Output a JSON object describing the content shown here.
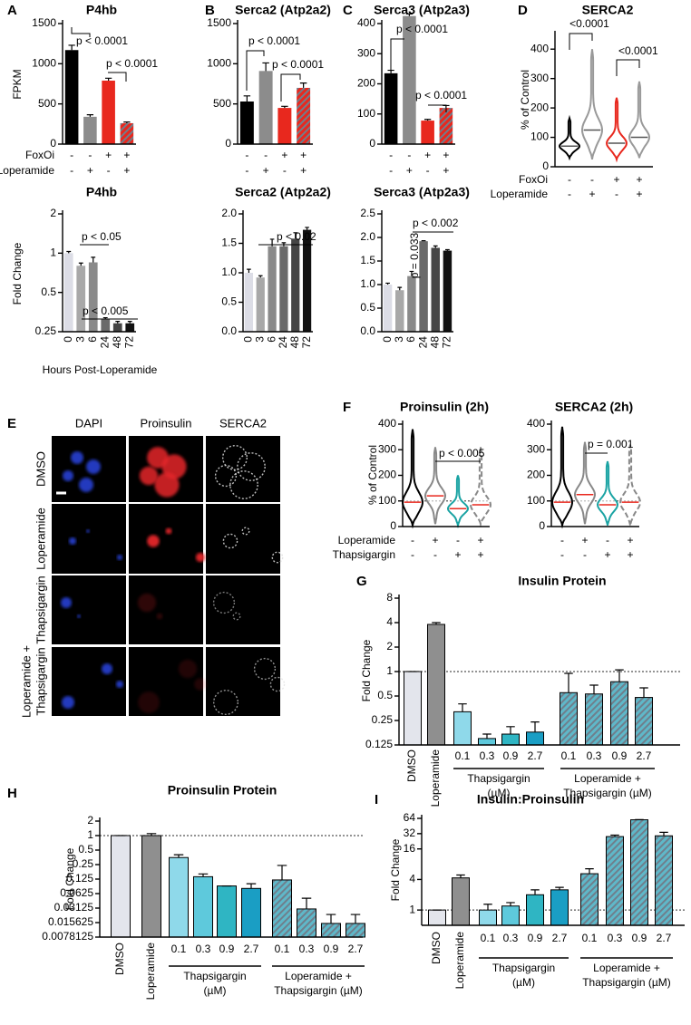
{
  "panels": [
    "A",
    "B",
    "C",
    "D",
    "E",
    "F",
    "G",
    "H",
    "I"
  ],
  "microscopy": {
    "columns": [
      "DAPI",
      "Proinsulin",
      "SERCA2"
    ],
    "rows": [
      [
        "DMSO"
      ],
      [
        "Loperamide"
      ],
      [
        "Thapsigargin"
      ],
      [
        "Loperamide +",
        "Thapsigargin"
      ]
    ]
  },
  "chart_data": [
    {
      "type": "bar",
      "title": "P4hb",
      "ylabel": "FPKM",
      "values": [
        1170,
        340,
        790,
        260
      ],
      "errors": [
        60,
        25,
        30,
        15
      ],
      "colors": [
        "#000000",
        "#8c8c8c",
        "#e8281e",
        "#e8281e"
      ],
      "hatch": [
        false,
        false,
        false,
        true
      ],
      "ylim": [
        0,
        1500
      ],
      "yticks": [
        0,
        500,
        1000,
        1500
      ],
      "factors": [
        {
          "name": "FoxOi",
          "levels": [
            "-",
            "-",
            "+",
            "+"
          ]
        },
        {
          "name": "Loperamide",
          "levels": [
            "-",
            "+",
            "-",
            "+"
          ]
        }
      ],
      "annotations": [
        "p < 0.0001",
        "p < 0.0001"
      ]
    },
    {
      "type": "bar",
      "title": "Serca2 (Atp2a2)",
      "values": [
        530,
        910,
        450,
        700
      ],
      "errors": [
        70,
        100,
        20,
        60
      ],
      "colors": [
        "#000000",
        "#8c8c8c",
        "#e8281e",
        "#e8281e"
      ],
      "hatch": [
        false,
        false,
        false,
        true
      ],
      "ylim": [
        0,
        1500
      ],
      "yticks": [
        0,
        500,
        1000,
        1500
      ],
      "factors": [
        {
          "levels": [
            "-",
            "-",
            "+",
            "+"
          ]
        },
        {
          "levels": [
            "-",
            "+",
            "-",
            "+"
          ]
        }
      ],
      "annotations": [
        "p < 0.0001",
        "p < 0.0001"
      ]
    },
    {
      "type": "bar",
      "title": "Serca3 (Atp2a3)",
      "values": [
        235,
        425,
        78,
        120
      ],
      "errors": [
        10,
        7,
        4,
        8
      ],
      "colors": [
        "#000000",
        "#8c8c8c",
        "#e8281e",
        "#e8281e"
      ],
      "hatch": [
        false,
        false,
        false,
        true
      ],
      "ylim": [
        0,
        400
      ],
      "yticks": [
        0,
        100,
        200,
        300,
        400
      ],
      "factors": [
        {
          "levels": [
            "-",
            "-",
            "+",
            "+"
          ]
        },
        {
          "levels": [
            "-",
            "+",
            "-",
            "+"
          ]
        }
      ],
      "annotations": [
        "p < 0.0001",
        "p < 0.0001"
      ]
    },
    {
      "type": "violin",
      "title": "SERCA2",
      "ylabel": "% of Control",
      "medians": [
        70,
        125,
        80,
        100
      ],
      "mins": [
        30,
        25,
        25,
        30
      ],
      "maxs": [
        165,
        400,
        235,
        290
      ],
      "colors": [
        "#000000",
        "#999999",
        "#e8281e",
        "#999999"
      ],
      "median_color": "#555555",
      "ylim": [
        0,
        450
      ],
      "yticks": [
        0,
        100,
        200,
        300,
        400
      ],
      "factors": [
        {
          "name": "FoxOi",
          "levels": [
            "-",
            "-",
            "+",
            "+"
          ]
        },
        {
          "name": "Loperamide",
          "levels": [
            "-",
            "+",
            "-",
            "+"
          ]
        }
      ],
      "annotations": [
        "<0.0001",
        "<0.0001"
      ]
    },
    {
      "type": "bar",
      "title": "P4hb",
      "ylabel": "Fold Change",
      "xlabel": "Hours Post-Loperamide",
      "yscale": "log2",
      "categories": [
        "0",
        "3",
        "6",
        "24",
        "48",
        "72"
      ],
      "values": [
        1.0,
        0.8,
        0.85,
        0.31,
        0.29,
        0.29
      ],
      "errors": [
        0.03,
        0.04,
        0.08,
        0.01,
        0.01,
        0.01
      ],
      "colors": [
        "#dcdde6",
        "#a8a8a8",
        "#8a8a8a",
        "#6a6a6a",
        "#454545",
        "#111111"
      ],
      "ylim": [
        0.25,
        2
      ],
      "yticks": [
        0.25,
        0.5,
        1,
        2
      ],
      "annotations": [
        "p < 0.05",
        "p < 0.005"
      ]
    },
    {
      "type": "bar",
      "title": "Serca2 (Atp2a2)",
      "categories": [
        "0",
        "3",
        "6",
        "24",
        "48",
        "72"
      ],
      "values": [
        1.0,
        0.92,
        1.45,
        1.45,
        1.58,
        1.73
      ],
      "errors": [
        0.06,
        0.03,
        0.12,
        0.06,
        0.1,
        0.04
      ],
      "colors": [
        "#dcdde6",
        "#a8a8a8",
        "#8a8a8a",
        "#6a6a6a",
        "#454545",
        "#111111"
      ],
      "ylim": [
        0,
        2
      ],
      "yticks": [
        {
          "value": 0,
          "label": "0.0"
        },
        {
          "value": 0.5,
          "label": "0.5"
        },
        {
          "value": 1,
          "label": "1.0"
        },
        {
          "value": 1.5,
          "label": "1.5"
        },
        {
          "value": 2,
          "label": "2.0"
        }
      ],
      "annotations": [
        "p < 0.02"
      ]
    },
    {
      "type": "bar",
      "title": "Serca3 (Atp2a3)",
      "categories": [
        "0",
        "3",
        "6",
        "24",
        "48",
        "72"
      ],
      "values": [
        1.0,
        0.88,
        1.18,
        1.92,
        1.78,
        1.72
      ],
      "errors": [
        0.03,
        0.06,
        0.1,
        0.01,
        0.04,
        0.02
      ],
      "colors": [
        "#dcdde6",
        "#a8a8a8",
        "#8a8a8a",
        "#6a6a6a",
        "#454545",
        "#111111"
      ],
      "ylim": [
        0,
        2.5
      ],
      "yticks": [
        {
          "value": 0,
          "label": "0.0"
        },
        {
          "value": 0.5,
          "label": "0.5"
        },
        {
          "value": 1,
          "label": "1.0"
        },
        {
          "value": 1.5,
          "label": "1.5"
        },
        {
          "value": 2,
          "label": "2.0"
        },
        {
          "value": 2.5,
          "label": "2.5"
        }
      ],
      "annotations": [
        "p = 0.033",
        "p < 0.002"
      ]
    },
    {
      "type": "violin",
      "title": "Proinsulin (2h)",
      "ylabel": "% of Control",
      "medians": [
        95,
        120,
        70,
        85
      ],
      "mins": [
        5,
        10,
        5,
        10
      ],
      "maxs": [
        380,
        310,
        200,
        310
      ],
      "colors": [
        "#000000",
        "#888888",
        "#1aa3a3",
        "#888888"
      ],
      "dashed": [
        false,
        false,
        false,
        true
      ],
      "median_color": "#e8281e",
      "ylim": [
        0,
        400
      ],
      "yticks": [
        0,
        100,
        200,
        300,
        400
      ],
      "reference_line": 100,
      "factors": [
        {
          "name": "Loperamide",
          "levels": [
            "-",
            "+",
            "-",
            "+"
          ]
        },
        {
          "name": "Thapsigargin",
          "levels": [
            "-",
            "-",
            "+",
            "+"
          ]
        }
      ],
      "annotations": [
        "p < 0.005"
      ]
    },
    {
      "type": "violin",
      "title": "SERCA2 (2h)",
      "medians": [
        95,
        125,
        85,
        95
      ],
      "mins": [
        5,
        10,
        5,
        5
      ],
      "maxs": [
        390,
        330,
        255,
        320
      ],
      "colors": [
        "#000000",
        "#888888",
        "#1aa3a3",
        "#888888"
      ],
      "dashed": [
        false,
        false,
        false,
        true
      ],
      "median_color": "#e8281e",
      "ylim": [
        0,
        400
      ],
      "yticks": [
        0,
        100,
        200,
        300,
        400
      ],
      "reference_line": 100,
      "factors": [
        {
          "levels": [
            "-",
            "+",
            "-",
            "+"
          ]
        },
        {
          "levels": [
            "-",
            "-",
            "+",
            "+"
          ]
        }
      ],
      "annotations": [
        "p = 0.001"
      ]
    },
    {
      "type": "bar",
      "title": "Insulin Protein",
      "ylabel": "Fold Change",
      "yscale": "log2",
      "categories": [
        "DMSO",
        "Loperamide",
        "0.1",
        "0.3",
        "0.9",
        "2.7",
        "0.1",
        "0.3",
        "0.9",
        "2.7"
      ],
      "values": [
        1,
        3.8,
        0.32,
        0.15,
        0.17,
        0.18,
        0.55,
        0.53,
        0.75,
        0.48
      ],
      "errors": [
        0,
        0.2,
        0.08,
        0.02,
        0.04,
        0.06,
        0.4,
        0.15,
        0.3,
        0.15
      ],
      "colors": [
        "#e3e5ec",
        "#8f8f8f",
        "#8fd9ea",
        "#5ec9dc",
        "#2fb5c3",
        "#1a9ec4",
        "#5fb8c9",
        "#5fb8c9",
        "#5fb8c9",
        "#5fb8c9"
      ],
      "hatch": [
        false,
        false,
        false,
        false,
        false,
        false,
        true,
        true,
        true,
        true
      ],
      "bar_outline": "#000000",
      "ylim": [
        0.125,
        8
      ],
      "yticks": [
        0.125,
        0.25,
        0.5,
        1,
        2,
        4,
        8
      ],
      "reference_line": 1,
      "groups": [
        {
          "label": [
            "Thapsigargin",
            "(µM)"
          ]
        },
        {
          "label": [
            "Loperamide +",
            "Thapsigargin (µM)"
          ]
        }
      ]
    },
    {
      "type": "bar",
      "title": "Proinsulin Protein",
      "ylabel": "Fold Change",
      "yscale": "log2",
      "categories": [
        "DMSO",
        "Loperamide",
        "0.1",
        "0.3",
        "0.9",
        "2.7",
        "0.1",
        "0.3",
        "0.9",
        "2.7"
      ],
      "values": [
        1,
        1,
        0.35,
        0.14,
        0.09,
        0.08,
        0.12,
        0.03,
        0.015,
        0.015
      ],
      "errors": [
        0,
        0.1,
        0.05,
        0.02,
        0,
        0.02,
        0.12,
        0.02,
        0.008,
        0.008
      ],
      "colors": [
        "#e3e5ec",
        "#8f8f8f",
        "#8fd9ea",
        "#5ec9dc",
        "#2fb5c3",
        "#1a9ec4",
        "#5fb8c9",
        "#5fb8c9",
        "#5fb8c9",
        "#5fb8c9"
      ],
      "hatch": [
        false,
        false,
        false,
        false,
        false,
        false,
        true,
        true,
        true,
        true
      ],
      "bar_outline": "#000000",
      "ylim": [
        0.0078125,
        2
      ],
      "yticks": [
        0.0078125,
        0.015625,
        0.03125,
        0.0625,
        0.125,
        0.25,
        0.5,
        1,
        2
      ],
      "reference_line": 1,
      "groups": [
        {
          "label": [
            "Thapsigargin",
            "(µM)"
          ]
        },
        {
          "label": [
            "Loperamide +",
            "Thapsigargin (µM)"
          ]
        }
      ]
    },
    {
      "type": "bar",
      "title": "Insulin:Proinsulin",
      "ylabel": "Fold Change",
      "yscale": "log2",
      "categories": [
        "DMSO",
        "Loperamide",
        "0.1",
        "0.3",
        "0.9",
        "2.7",
        "0.1",
        "0.3",
        "0.9",
        "2.7"
      ],
      "values": [
        1,
        4.3,
        1,
        1.2,
        2,
        2.5,
        5.2,
        28,
        60,
        29
      ],
      "errors": [
        0,
        0.6,
        0.3,
        0.2,
        0.5,
        0.3,
        1.3,
        2,
        0.5,
        5
      ],
      "colors": [
        "#e3e5ec",
        "#8f8f8f",
        "#8fd9ea",
        "#5ec9dc",
        "#2fb5c3",
        "#1a9ec4",
        "#5fb8c9",
        "#5fb8c9",
        "#5fb8c9",
        "#5fb8c9"
      ],
      "hatch": [
        false,
        false,
        false,
        false,
        false,
        false,
        true,
        true,
        true,
        true
      ],
      "bar_outline": "#000000",
      "ylim": [
        0.5,
        64
      ],
      "yticks": [
        1,
        4,
        16,
        32,
        64
      ],
      "reference_line": 1,
      "groups": [
        {
          "label": [
            "Thapsigargin",
            "(µM)"
          ]
        },
        {
          "label": [
            "Loperamide +",
            "Thapsigargin (µM)"
          ]
        }
      ]
    }
  ]
}
